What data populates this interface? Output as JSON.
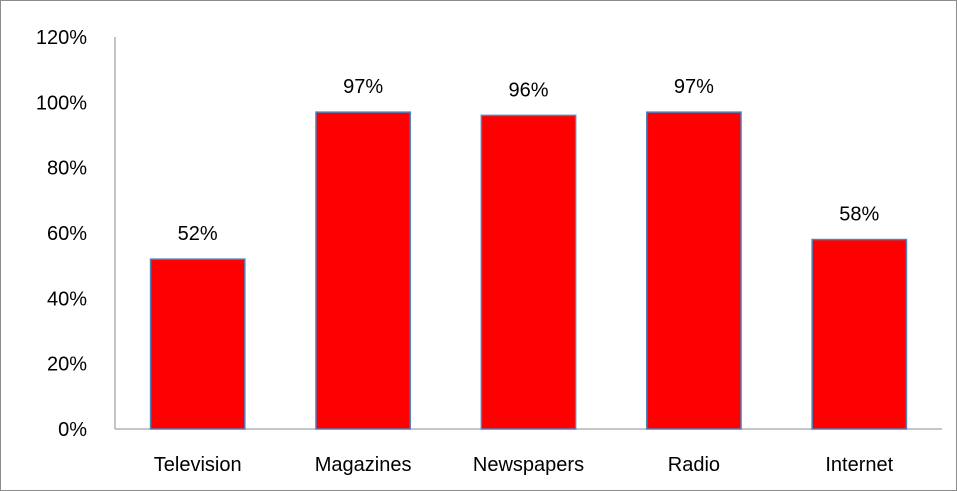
{
  "chart_data": {
    "type": "bar",
    "categories": [
      "Television",
      "Magazines",
      "Newspapers",
      "Radio",
      "Internet"
    ],
    "values": [
      52,
      97,
      96,
      97,
      58
    ],
    "data_labels": [
      "52%",
      "97%",
      "96%",
      "97%",
      "58%"
    ],
    "y_ticks": [
      "0%",
      "20%",
      "40%",
      "60%",
      "80%",
      "100%",
      "120%"
    ],
    "ylim": [
      0,
      120
    ],
    "title": "",
    "xlabel": "",
    "ylabel": "",
    "grid": false,
    "legend": "none",
    "bar_color": "#ff0000",
    "bar_border_color": "#4f81bd"
  }
}
